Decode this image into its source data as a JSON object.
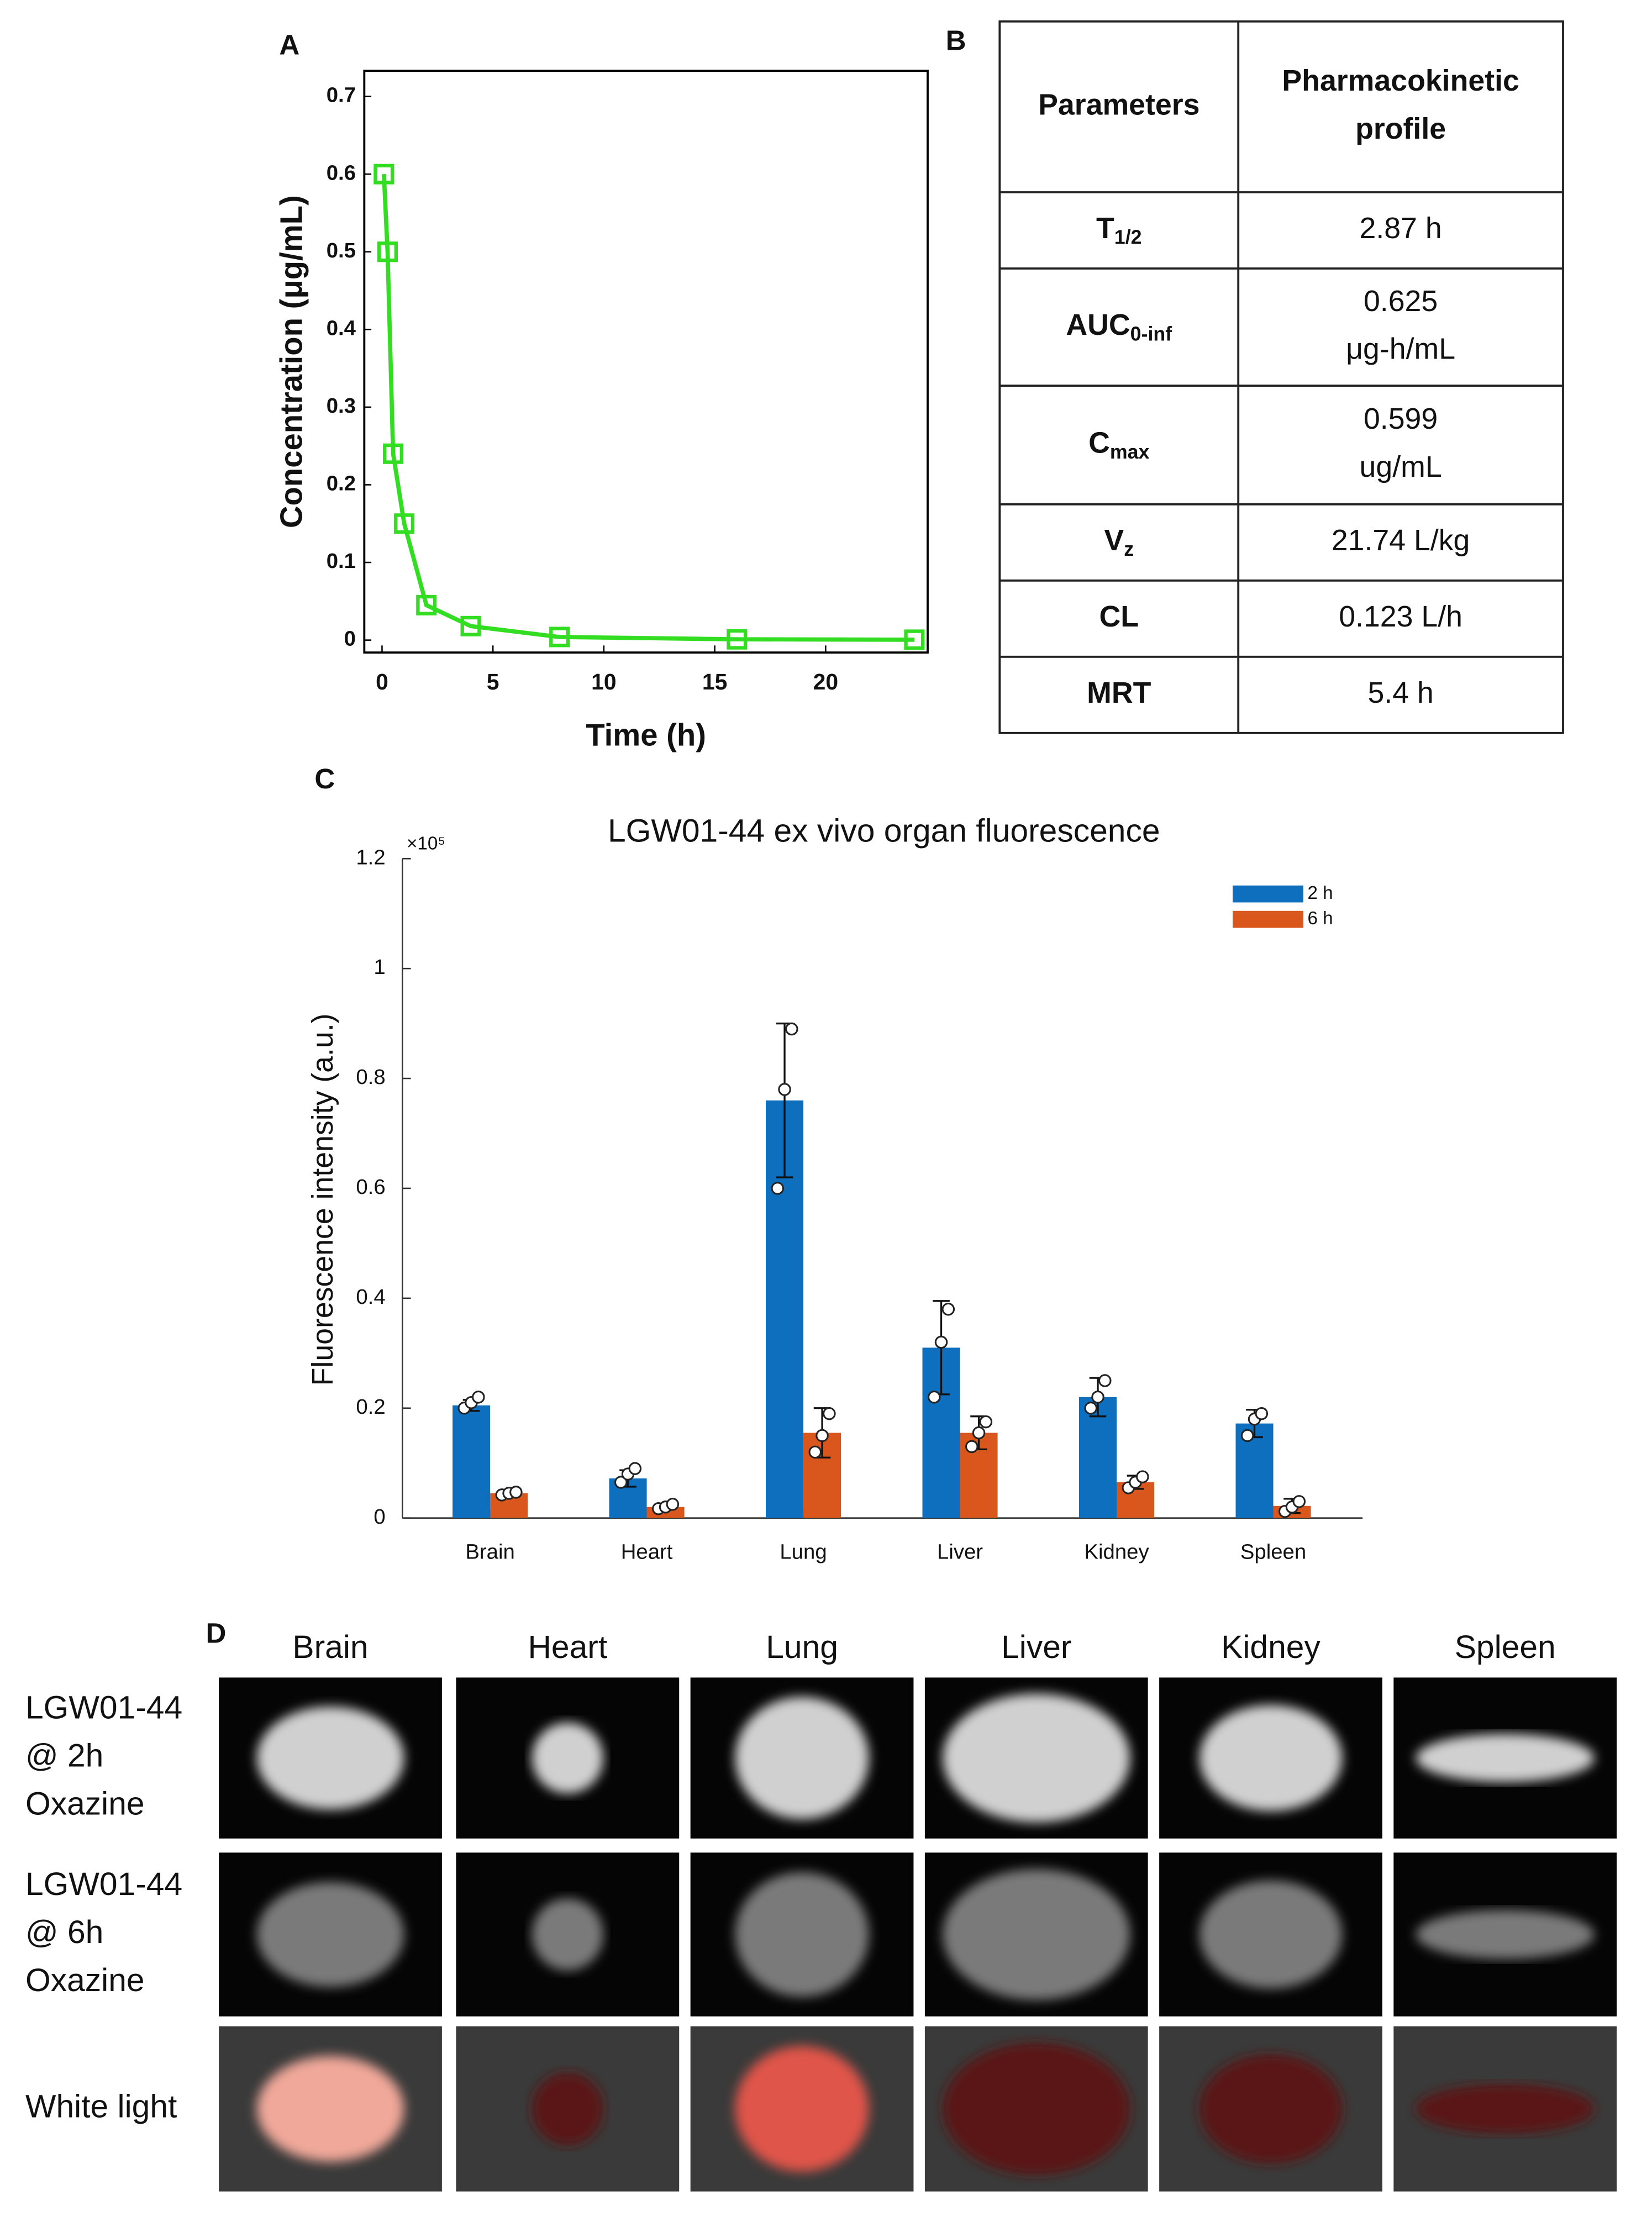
{
  "chart_data": [
    {
      "type": "line",
      "panel_label": "A",
      "xlabel": "Time (h)",
      "ylabel": "Concentration (μg/mL)",
      "x": [
        0.083,
        0.25,
        0.5,
        1,
        2,
        4,
        8,
        16,
        24
      ],
      "values": [
        0.6,
        0.5,
        0.24,
        0.15,
        0.045,
        0.018,
        0.004,
        0.001,
        0.0005
      ],
      "color": "#33dd22",
      "xlim": [
        -0.8,
        24.6
      ],
      "ylim": [
        -0.016,
        0.733
      ],
      "xticks": [
        0,
        5,
        10,
        15,
        20
      ],
      "yticks": [
        0,
        0.1,
        0.2,
        0.3,
        0.4,
        0.5,
        0.6,
        0.7
      ]
    },
    {
      "type": "bar",
      "panel_label": "C",
      "title": "LGW01-44 ex vivo organ fluorescence",
      "ylabel": "Fluorescence intensity (a.u.)",
      "y_multiplier": "×10⁵",
      "categories": [
        "Brain",
        "Heart",
        "Lung",
        "Liver",
        "Kidney",
        "Spleen"
      ],
      "series": [
        {
          "name": "2 h",
          "color": "#0f6fbf",
          "values": [
            0.205,
            0.072,
            0.76,
            0.31,
            0.22,
            0.172
          ],
          "errors": [
            0.01,
            0.015,
            0.14,
            0.085,
            0.035,
            0.025
          ],
          "points": [
            [
              0.2,
              0.21,
              0.22
            ],
            [
              0.065,
              0.08,
              0.09
            ],
            [
              0.6,
              0.78,
              0.89
            ],
            [
              0.22,
              0.32,
              0.38
            ],
            [
              0.2,
              0.22,
              0.25
            ],
            [
              0.15,
              0.18,
              0.19
            ]
          ]
        },
        {
          "name": "6 h",
          "color": "#d9561c",
          "values": [
            0.045,
            0.02,
            0.155,
            0.155,
            0.065,
            0.022
          ],
          "errors": [
            0.005,
            0.005,
            0.045,
            0.03,
            0.012,
            0.013
          ],
          "points": [
            [
              0.042,
              0.045,
              0.047
            ],
            [
              0.017,
              0.02,
              0.025
            ],
            [
              0.12,
              0.15,
              0.19
            ],
            [
              0.13,
              0.155,
              0.175
            ],
            [
              0.055,
              0.065,
              0.075
            ],
            [
              0.012,
              0.02,
              0.03
            ]
          ]
        }
      ],
      "ylim": [
        0,
        1.2
      ],
      "yticks": [
        0,
        0.2,
        0.4,
        0.6,
        0.8,
        1,
        1.2
      ],
      "legend": "upper right"
    }
  ],
  "table": {
    "panel_label": "B",
    "header": [
      [
        "Parameters"
      ],
      [
        "Pharmacokinetic",
        "profile"
      ]
    ],
    "rows": [
      [
        {
          "main": "T",
          "sub": "1/2"
        },
        [
          "2.87 h"
        ]
      ],
      [
        {
          "main": "AUC",
          "sub": "0-inf"
        },
        [
          "0.625",
          "μg-h/mL"
        ]
      ],
      [
        {
          "main": "C",
          "sub": "max"
        },
        [
          "0.599",
          "ug/mL"
        ]
      ],
      [
        {
          "main": "V",
          "sub": "z"
        },
        [
          "21.74 L/kg"
        ]
      ],
      [
        {
          "main": "CL"
        },
        [
          "0.123 L/h"
        ]
      ],
      [
        {
          "main": "MRT"
        },
        [
          "5.4 h"
        ]
      ]
    ]
  },
  "image_grid": {
    "panel_label": "D",
    "columns": [
      "Brain",
      "Heart",
      "Lung",
      "Liver",
      "Kidney",
      "Spleen"
    ],
    "rows": [
      [
        "LGW01-44",
        "@ 2h",
        "Oxazine"
      ],
      [
        "LGW01-44",
        "@ 6h",
        "Oxazine"
      ],
      [
        "White light"
      ]
    ]
  }
}
